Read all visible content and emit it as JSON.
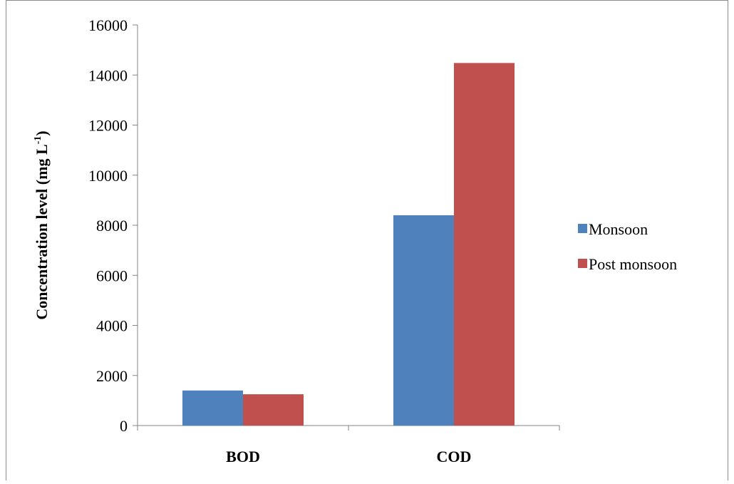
{
  "chart_data": {
    "type": "bar",
    "categories": [
      "BOD",
      "COD"
    ],
    "series": [
      {
        "name": "Monsoon",
        "values": [
          1400,
          8400
        ],
        "color": "#4f81bd"
      },
      {
        "name": "Post monsoon",
        "values": [
          1250,
          14480
        ],
        "color": "#c0504d"
      }
    ],
    "ylabel_main": "Concentration level (mg  L",
    "ylabel_sup": "-1",
    "ylabel_close": ")",
    "ylim": [
      0,
      16000
    ],
    "yticks": [
      0,
      2000,
      4000,
      6000,
      8000,
      10000,
      12000,
      14000,
      16000
    ],
    "grid": false,
    "legend_position": "right"
  }
}
